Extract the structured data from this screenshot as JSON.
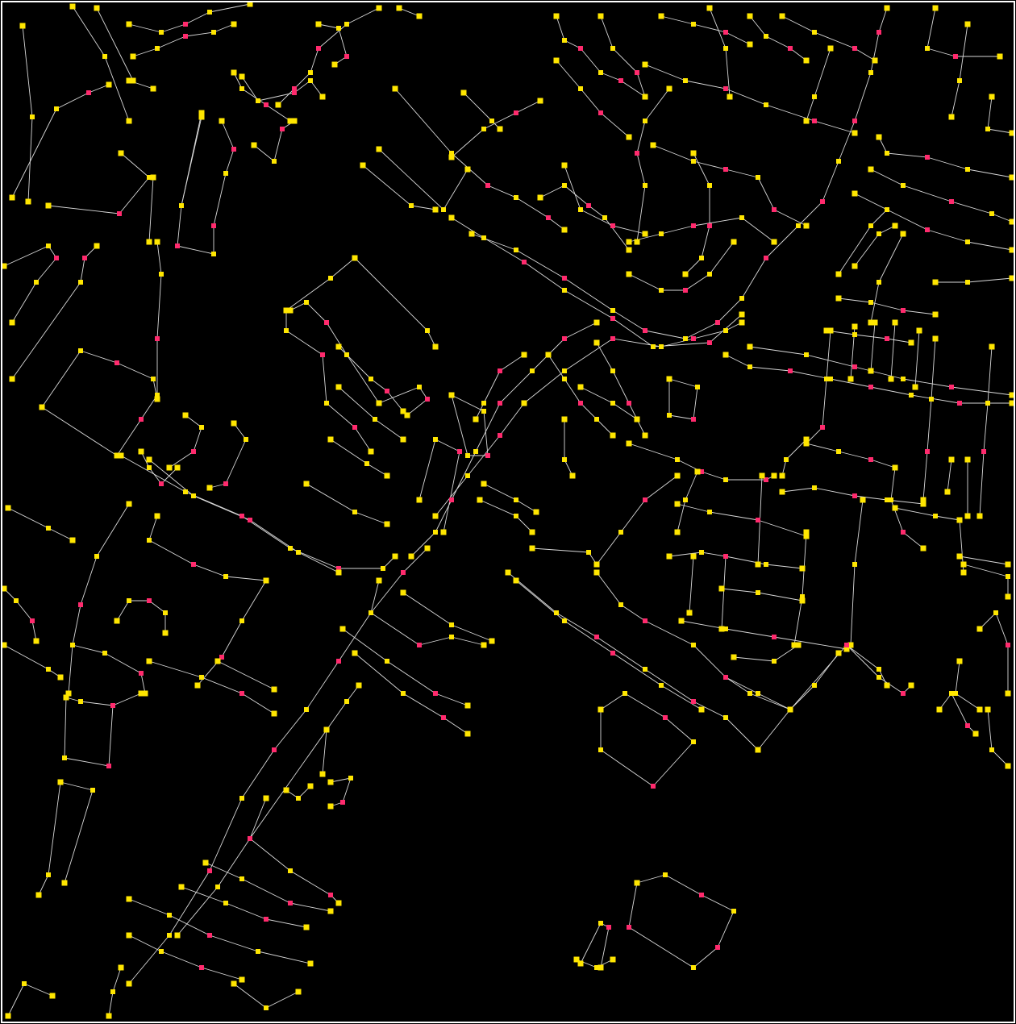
{
  "map": {
    "type": "vector-network-overlay",
    "colors": {
      "background": "#000000",
      "edge": "#d9d9d9",
      "vertex": "#ffe600",
      "junction": "#ff2a6d",
      "frame": "#ffffff"
    },
    "legend": "none",
    "text_labels": "none"
  }
}
